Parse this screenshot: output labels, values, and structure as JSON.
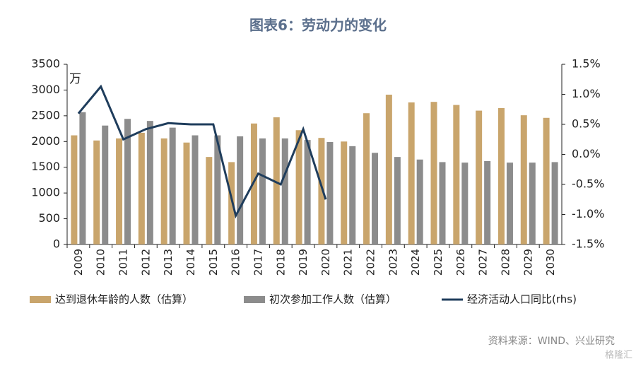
{
  "chart_data": {
    "type": "bar_line",
    "title": "图表6：劳动力的变化",
    "unit_label": "万",
    "source": "资料来源：WIND、兴业研究",
    "watermark": "格隆汇",
    "categories": [
      "2009",
      "2010",
      "2011",
      "2012",
      "2013",
      "2014",
      "2015",
      "2016",
      "2017",
      "2018",
      "2019",
      "2020",
      "2021",
      "2022",
      "2023",
      "2024",
      "2025",
      "2026",
      "2027",
      "2028",
      "2029",
      "2030"
    ],
    "series": [
      {
        "name": "达到退休年龄的人数（估算）",
        "type": "bar",
        "color": "#c9a56c",
        "values": [
          2120,
          2020,
          2060,
          2170,
          2060,
          1980,
          1700,
          1600,
          2350,
          2470,
          2220,
          2070,
          2000,
          2550,
          2910,
          2760,
          2770,
          2710,
          2600,
          2650,
          2510,
          2460
        ]
      },
      {
        "name": "初次参加工作人数（估算）",
        "type": "bar",
        "color": "#8c8c8c",
        "values": [
          2570,
          2310,
          2440,
          2400,
          2270,
          2120,
          2120,
          2100,
          2060,
          2060,
          2030,
          1990,
          1910,
          1780,
          1700,
          1650,
          1600,
          1590,
          1620,
          1590,
          1590,
          1600
        ]
      },
      {
        "name": "经济活动人口同比(rhs)",
        "type": "line",
        "axis": "y2",
        "color": "#1f3d5c",
        "values": [
          0.68,
          1.13,
          0.25,
          0.42,
          0.52,
          0.5,
          0.5,
          -1.02,
          -0.32,
          -0.5,
          0.42,
          -0.75,
          null,
          null,
          null,
          null,
          null,
          null,
          null,
          null,
          null,
          null
        ]
      }
    ],
    "ylim": [
      0,
      3500
    ],
    "yticks": [
      0,
      500,
      1000,
      1500,
      2000,
      2500,
      3000,
      3500
    ],
    "y2lim": [
      -1.5,
      1.5
    ],
    "y2ticks": [
      {
        "value": -1.5,
        "label": "-1.5%"
      },
      {
        "value": -1.0,
        "label": "-1.0%"
      },
      {
        "value": -0.5,
        "label": "-0.5%"
      },
      {
        "value": 0,
        "label": "0.0%"
      },
      {
        "value": 0.5,
        "label": "0.5%"
      },
      {
        "value": 1.0,
        "label": "1.0%"
      },
      {
        "value": 1.5,
        "label": "1.5%"
      }
    ]
  }
}
